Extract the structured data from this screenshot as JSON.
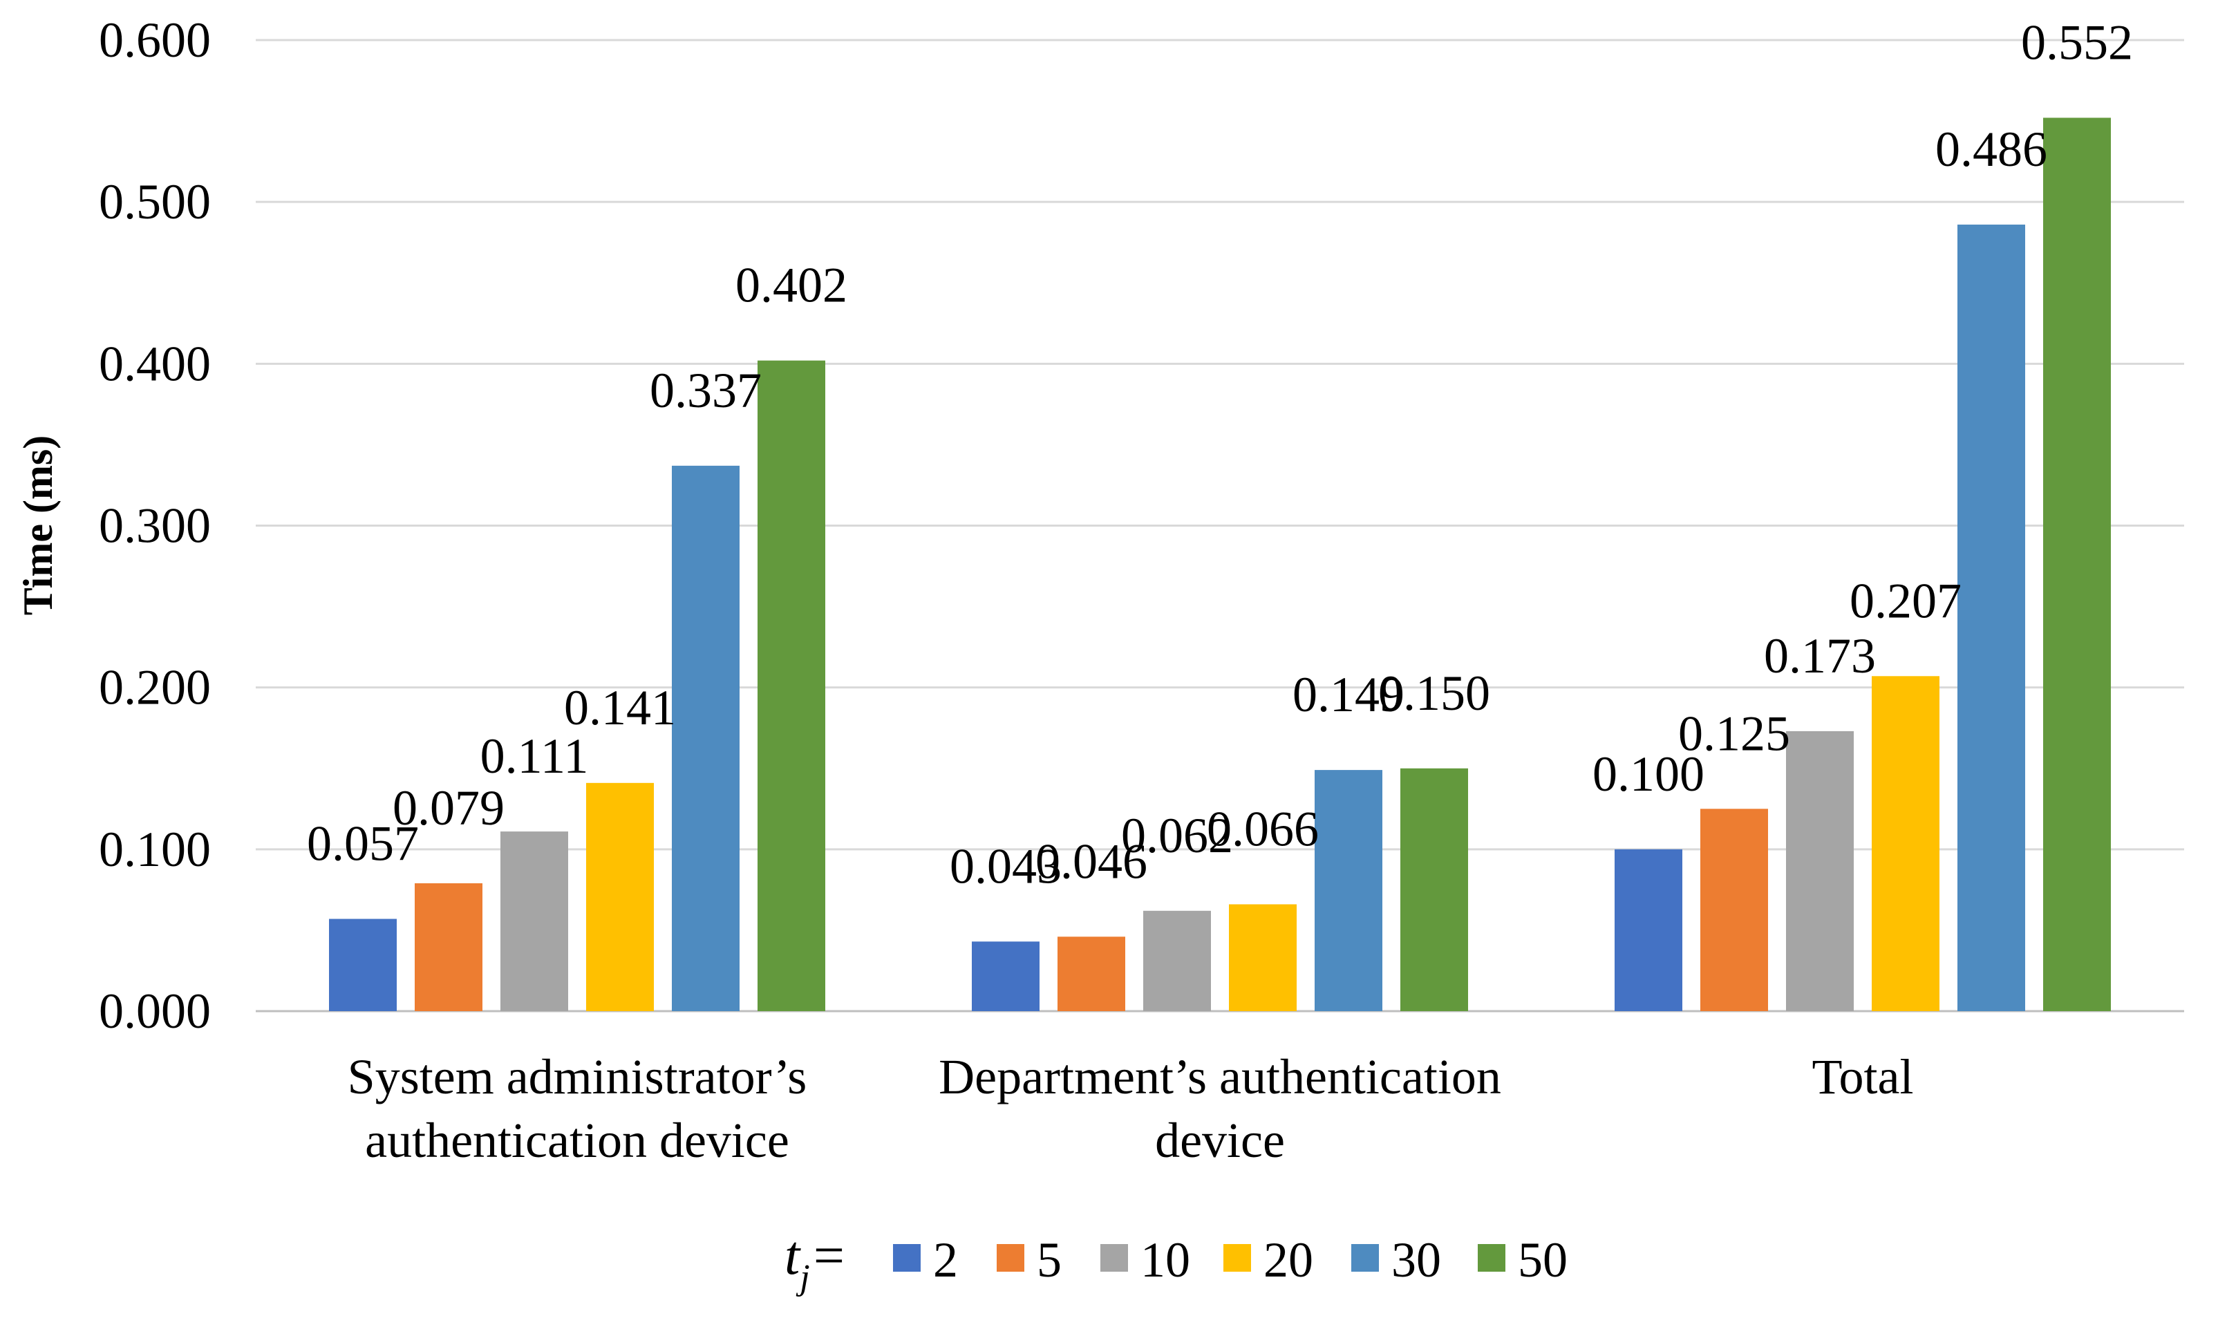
{
  "chart_data": {
    "type": "bar",
    "title": "",
    "xlabel": "",
    "ylabel": "Time (ms)",
    "ylim": [
      0,
      0.6
    ],
    "yticks": [
      "0.000",
      "0.100",
      "0.200",
      "0.300",
      "0.400",
      "0.500",
      "0.600"
    ],
    "grid": true,
    "legend_position": "bottom",
    "legend_prefix": "t",
    "legend_prefix_sub": "j",
    "legend_prefix_suffix": "=",
    "categories": [
      [
        "System administrator’s",
        "authentication device"
      ],
      [
        "Department’s authentication",
        "device"
      ],
      [
        "Total"
      ]
    ],
    "series": [
      {
        "name": "2",
        "color": "#4472C4",
        "values": [
          0.057,
          0.043,
          0.1
        ],
        "labels": [
          "0.057",
          "0.043",
          "0.100"
        ]
      },
      {
        "name": "5",
        "color": "#ED7D31",
        "values": [
          0.079,
          0.046,
          0.125
        ],
        "labels": [
          "0.079",
          "0.046",
          "0.125"
        ]
      },
      {
        "name": "10",
        "color": "#A5A5A5",
        "values": [
          0.111,
          0.062,
          0.173
        ],
        "labels": [
          "0.111",
          "0.062",
          "0.173"
        ]
      },
      {
        "name": "20",
        "color": "#FFC000",
        "values": [
          0.141,
          0.066,
          0.207
        ],
        "labels": [
          "0.141",
          "0.066",
          "0.207"
        ]
      },
      {
        "name": "30",
        "color": "#4E8BC0",
        "values": [
          0.337,
          0.149,
          0.486
        ],
        "labels": [
          "0.337",
          "0.149",
          "0.486"
        ]
      },
      {
        "name": "50",
        "color": "#63993D",
        "values": [
          0.402,
          0.15,
          0.552
        ],
        "labels": [
          "0.402",
          "0.150",
          "0.552"
        ]
      }
    ]
  }
}
